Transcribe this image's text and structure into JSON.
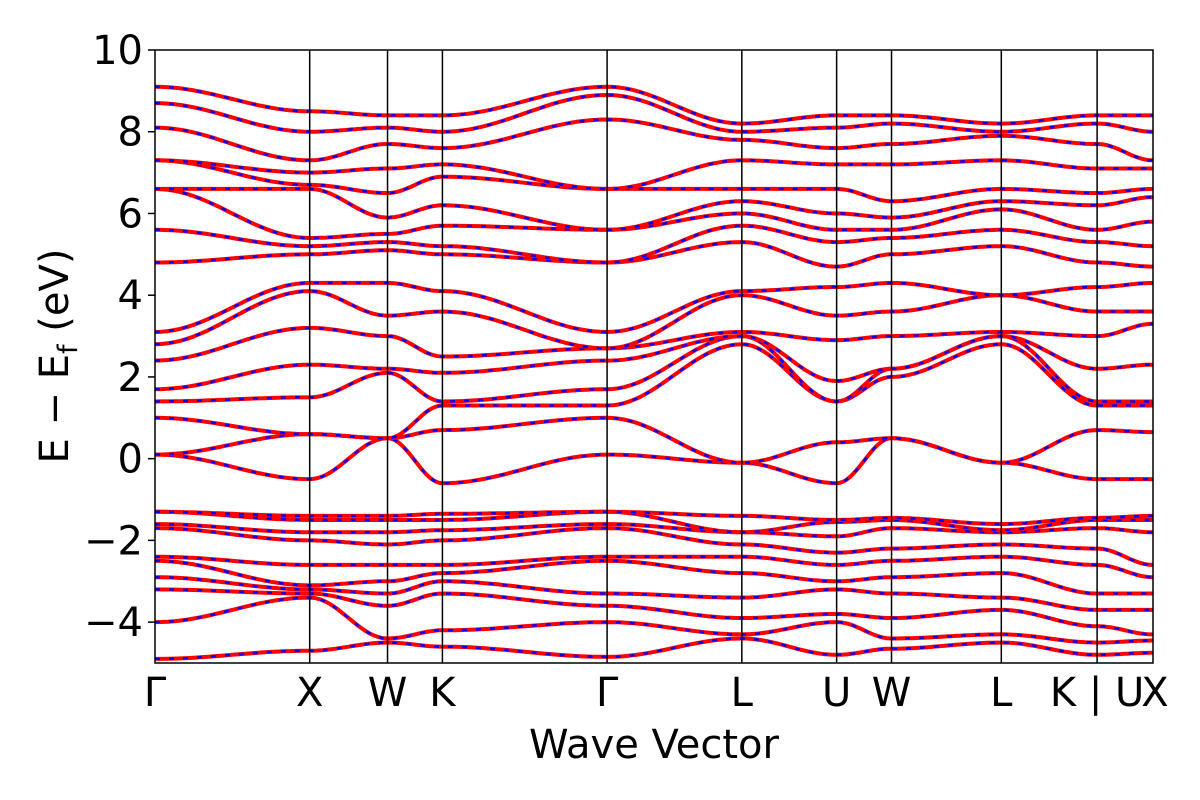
{
  "chart_data": {
    "type": "line",
    "title": "",
    "xlabel": "Wave Vector",
    "ylabel": "E − E_f (eV)",
    "ylabel_main": "E − E",
    "ylabel_sub": "f",
    "ylabel_unit": " (eV)",
    "ylim": [
      -5,
      10
    ],
    "yticks": [
      -4,
      -2,
      0,
      2,
      4,
      6,
      8,
      10
    ],
    "ytick_labels": [
      "−4",
      "−2",
      "0",
      "2",
      "4",
      "6",
      "8",
      "10"
    ],
    "xlim": [
      0,
      10
    ],
    "kpath": [
      {
        "label": "Γ",
        "x": 0.0
      },
      {
        "label": "X",
        "x": 1.55
      },
      {
        "label": "W",
        "x": 2.33
      },
      {
        "label": "K",
        "x": 2.88
      },
      {
        "label": "Γ",
        "x": 4.53
      },
      {
        "label": "L",
        "x": 5.88
      },
      {
        "label": "U",
        "x": 6.83
      },
      {
        "label": "W",
        "x": 7.38
      },
      {
        "label": "L",
        "x": 8.48
      },
      {
        "label": "K | U",
        "x": 9.44
      },
      {
        "label": "X",
        "x": 10.0
      }
    ],
    "grid": false,
    "legend": "none",
    "colors": {
      "band_a": "#ff0000",
      "band_b": "#0000ff",
      "frame": "#000000"
    },
    "series_style": "red solid bands overlaid with blue dashed bands (identical)",
    "bands": [
      {
        "values": [
          -4.9,
          -4.7,
          -4.5,
          -4.6,
          -4.85,
          -4.4,
          -4.8,
          -4.65,
          -4.5,
          -4.8,
          -4.75
        ]
      },
      {
        "values": [
          -4.0,
          -3.4,
          -4.4,
          -4.2,
          -4.0,
          -4.3,
          -4.0,
          -4.4,
          -4.3,
          -4.5,
          -4.45
        ]
      },
      {
        "values": [
          -3.2,
          -3.3,
          -3.6,
          -3.3,
          -3.6,
          -3.9,
          -3.8,
          -3.9,
          -3.7,
          -4.1,
          -4.3
        ]
      },
      {
        "values": [
          -2.9,
          -3.2,
          -3.3,
          -3.0,
          -3.3,
          -3.4,
          -3.2,
          -3.3,
          -3.4,
          -3.7,
          -3.7
        ]
      },
      {
        "values": [
          -2.5,
          -3.1,
          -3.0,
          -2.8,
          -2.5,
          -2.8,
          -3.0,
          -2.9,
          -2.8,
          -3.3,
          -3.3
        ]
      },
      {
        "values": [
          -2.4,
          -2.6,
          -2.6,
          -2.6,
          -2.4,
          -2.4,
          -2.6,
          -2.5,
          -2.4,
          -2.6,
          -2.9
        ]
      },
      {
        "values": [
          -1.7,
          -2.0,
          -2.1,
          -2.0,
          -1.7,
          -2.1,
          -2.3,
          -2.2,
          -2.1,
          -2.2,
          -2.6
        ]
      },
      {
        "values": [
          -1.6,
          -1.8,
          -1.8,
          -1.75,
          -1.6,
          -1.8,
          -1.9,
          -1.7,
          -1.8,
          -1.7,
          -1.8
        ]
      },
      {
        "values": [
          -1.3,
          -1.5,
          -1.5,
          -1.5,
          -1.3,
          -1.8,
          -1.55,
          -1.5,
          -1.75,
          -1.5,
          -1.5
        ]
      },
      {
        "values": [
          -1.3,
          -1.4,
          -1.4,
          -1.35,
          -1.3,
          -1.4,
          -1.5,
          -1.45,
          -1.6,
          -1.45,
          -1.4
        ]
      },
      {
        "values": [
          0.1,
          -0.5,
          0.5,
          -0.6,
          0.1,
          -0.1,
          -0.6,
          0.5,
          -0.1,
          -0.5,
          -0.5
        ]
      },
      {
        "values": [
          0.1,
          0.6,
          0.5,
          0.7,
          1.0,
          -0.1,
          0.4,
          0.5,
          -0.1,
          0.7,
          0.65
        ]
      },
      {
        "values": [
          1.0,
          0.6,
          0.5,
          1.3,
          1.3,
          2.8,
          1.4,
          2.0,
          2.8,
          1.3,
          1.3
        ]
      },
      {
        "values": [
          1.4,
          1.5,
          2.1,
          1.4,
          1.7,
          3.0,
          1.4,
          2.2,
          3.0,
          1.4,
          1.4
        ]
      },
      {
        "values": [
          1.7,
          2.3,
          2.2,
          2.1,
          2.4,
          3.0,
          1.9,
          2.2,
          3.0,
          2.2,
          2.3
        ]
      },
      {
        "values": [
          2.4,
          3.2,
          3.0,
          2.5,
          2.7,
          3.1,
          2.9,
          3.0,
          3.1,
          3.0,
          3.3
        ]
      },
      {
        "values": [
          2.8,
          4.1,
          3.5,
          3.6,
          2.7,
          4.0,
          3.5,
          3.6,
          4.0,
          3.6,
          3.6
        ]
      },
      {
        "values": [
          3.1,
          4.3,
          4.3,
          4.1,
          3.1,
          4.1,
          4.2,
          4.3,
          4.0,
          4.2,
          4.3
        ]
      },
      {
        "values": [
          4.8,
          5.0,
          5.1,
          5.0,
          4.8,
          5.3,
          4.7,
          5.0,
          5.2,
          4.8,
          4.7
        ]
      },
      {
        "values": [
          5.6,
          5.2,
          5.3,
          5.2,
          4.8,
          5.7,
          5.3,
          5.4,
          5.6,
          5.3,
          5.2
        ]
      },
      {
        "values": [
          6.6,
          5.4,
          5.5,
          5.7,
          5.6,
          6.0,
          5.6,
          5.6,
          6.1,
          5.6,
          5.8
        ]
      },
      {
        "values": [
          6.6,
          6.6,
          5.9,
          6.2,
          5.6,
          6.3,
          6.0,
          5.9,
          6.3,
          6.2,
          6.4
        ]
      },
      {
        "values": [
          7.3,
          6.7,
          6.5,
          6.9,
          6.6,
          6.6,
          6.6,
          6.3,
          6.6,
          6.5,
          6.6
        ]
      },
      {
        "values": [
          7.3,
          7.0,
          7.1,
          7.2,
          6.6,
          7.3,
          7.2,
          7.2,
          7.3,
          7.1,
          7.1
        ]
      },
      {
        "values": [
          8.1,
          7.3,
          7.7,
          7.6,
          8.3,
          7.8,
          7.6,
          7.7,
          7.9,
          7.7,
          7.3
        ]
      },
      {
        "values": [
          8.7,
          8.0,
          8.1,
          8.0,
          8.9,
          8.0,
          8.1,
          8.2,
          8.0,
          8.2,
          8.0
        ]
      },
      {
        "values": [
          9.1,
          8.5,
          8.4,
          8.4,
          9.1,
          8.2,
          8.4,
          8.4,
          8.2,
          8.4,
          8.4
        ]
      }
    ]
  }
}
